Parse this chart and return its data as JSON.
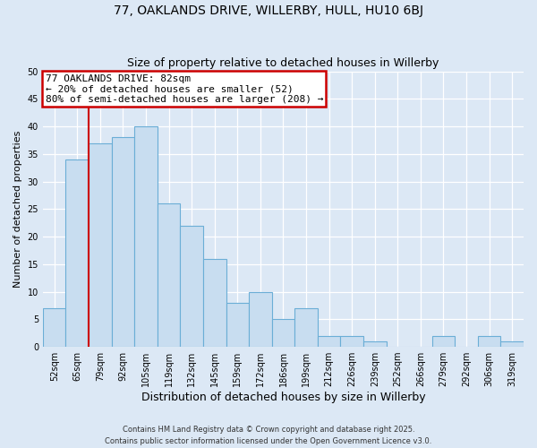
{
  "title": "77, OAKLANDS DRIVE, WILLERBY, HULL, HU10 6BJ",
  "subtitle": "Size of property relative to detached houses in Willerby",
  "xlabel": "Distribution of detached houses by size in Willerby",
  "ylabel": "Number of detached properties",
  "bar_labels": [
    "52sqm",
    "65sqm",
    "79sqm",
    "92sqm",
    "105sqm",
    "119sqm",
    "132sqm",
    "145sqm",
    "159sqm",
    "172sqm",
    "186sqm",
    "199sqm",
    "212sqm",
    "226sqm",
    "239sqm",
    "252sqm",
    "266sqm",
    "279sqm",
    "292sqm",
    "306sqm",
    "319sqm"
  ],
  "bar_values": [
    7,
    34,
    37,
    38,
    40,
    26,
    22,
    16,
    8,
    10,
    5,
    7,
    2,
    2,
    1,
    0,
    0,
    2,
    0,
    2,
    1
  ],
  "bar_color": "#c8ddf0",
  "bar_edge_color": "#6baed6",
  "background_color": "#dce8f5",
  "grid_color": "#ffffff",
  "annotation_text_line1": "77 OAKLANDS DRIVE: 82sqm",
  "annotation_text_line2": "← 20% of detached houses are smaller (52)",
  "annotation_text_line3": "80% of semi-detached houses are larger (208) →",
  "annotation_box_facecolor": "#ffffff",
  "annotation_box_edgecolor": "#cc0000",
  "property_line_color": "#cc0000",
  "property_line_xindex": 2,
  "ylim": [
    0,
    50
  ],
  "yticks": [
    0,
    5,
    10,
    15,
    20,
    25,
    30,
    35,
    40,
    45,
    50
  ],
  "footer_line1": "Contains HM Land Registry data © Crown copyright and database right 2025.",
  "footer_line2": "Contains public sector information licensed under the Open Government Licence v3.0.",
  "title_fontsize": 10,
  "subtitle_fontsize": 9,
  "ylabel_fontsize": 8,
  "xlabel_fontsize": 9,
  "tick_fontsize": 7,
  "annotation_fontsize": 8,
  "footer_fontsize": 6
}
